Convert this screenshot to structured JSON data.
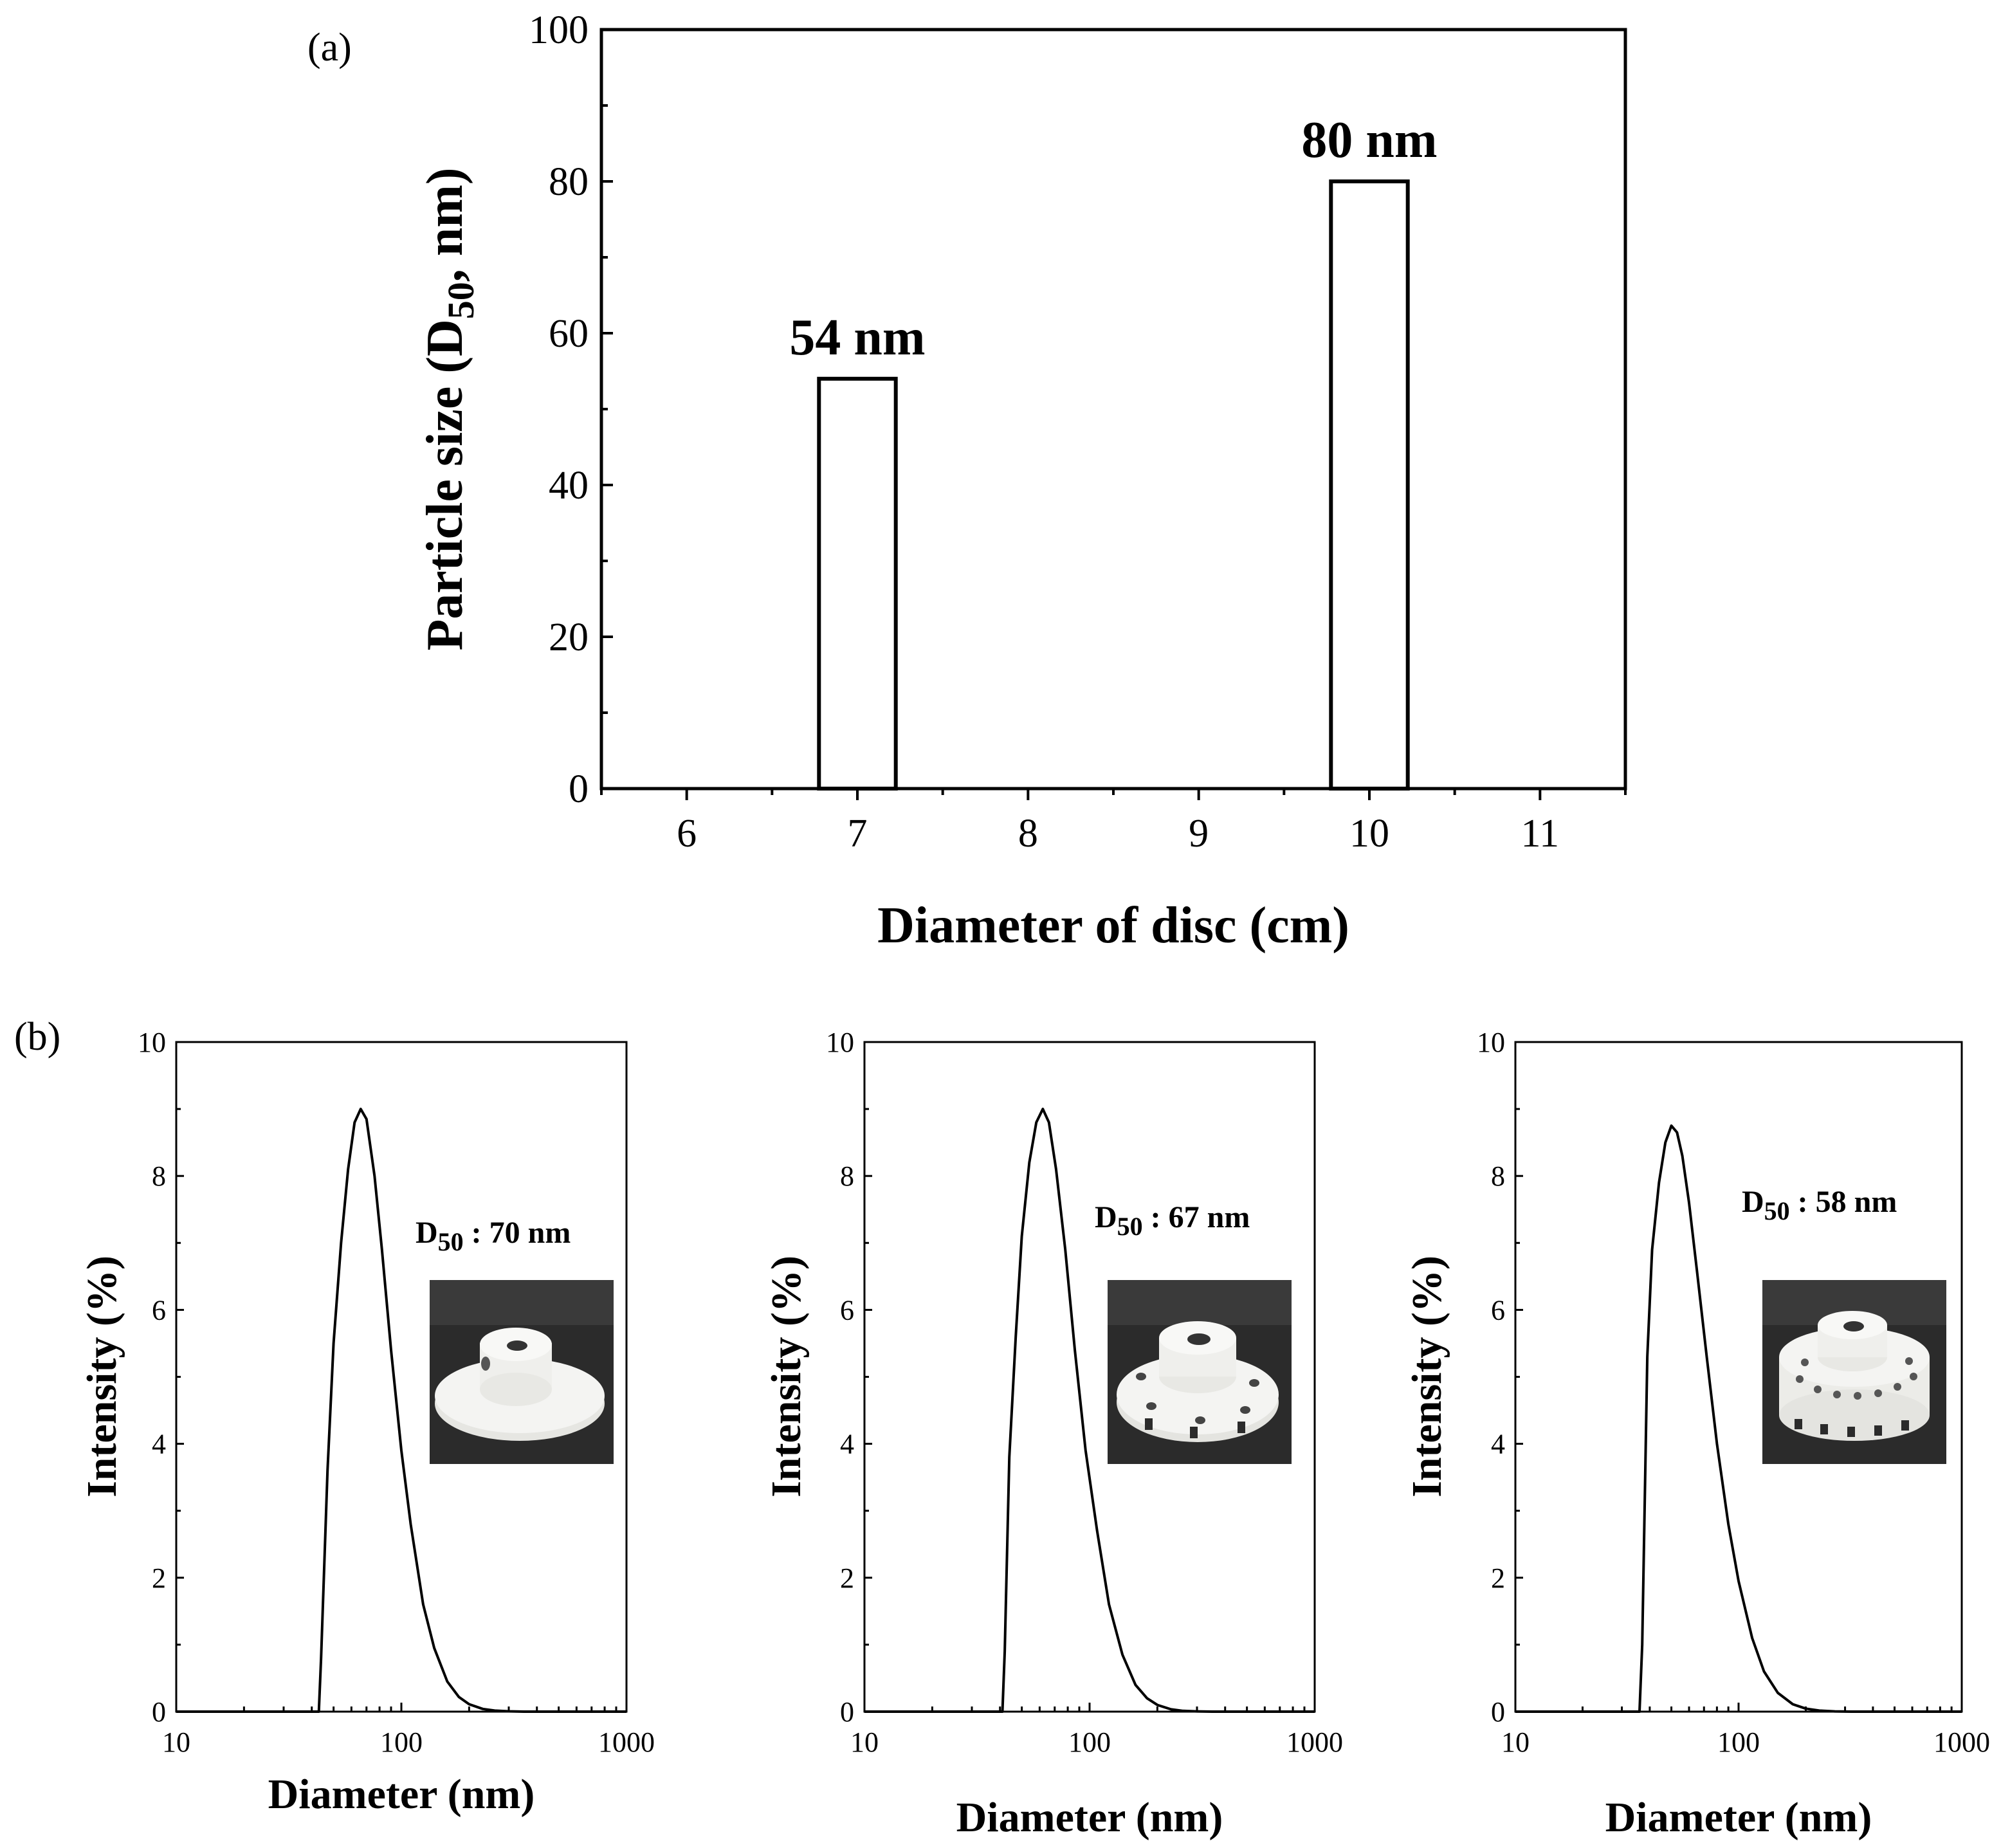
{
  "figure": {
    "panel_a_label": "(a)",
    "panel_b_label": "(b)"
  },
  "colors": {
    "line": "#000000",
    "bar_fill": "#ffffff",
    "background": "#ffffff",
    "photo_bg": "#2a2a2a",
    "part_white": "#f2f2f0"
  },
  "chart_data": [
    {
      "id": "a",
      "type": "bar",
      "title": "",
      "xlabel": "Diameter of disc (cm)",
      "ylabel_main": "Particle size (D",
      "ylabel_sub": "50",
      "ylabel_tail": ", nm)",
      "x": [
        7,
        10
      ],
      "values": [
        54,
        80
      ],
      "data_labels": [
        "54 nm",
        "80 nm"
      ],
      "xlim": [
        5.5,
        11.5
      ],
      "ylim": [
        0,
        100
      ],
      "xticks": [
        6,
        7,
        8,
        9,
        10,
        11
      ],
      "yticks": [
        0,
        20,
        40,
        60,
        80,
        100
      ],
      "bar_width": 0.45,
      "grid": false
    },
    {
      "id": "b1",
      "type": "line",
      "xscale": "log",
      "xlabel": "Diameter (nm)",
      "ylabel": "Intensity (%)",
      "xlim": [
        10,
        1000
      ],
      "ylim": [
        0,
        10
      ],
      "xticks": [
        10,
        100,
        1000
      ],
      "yticks": [
        0,
        2,
        4,
        6,
        8,
        10
      ],
      "annotation_main": "D",
      "annotation_sub": "50",
      "annotation_tail": " : 70 nm",
      "inset_photo": "disc-no-holes",
      "x": [
        43,
        44,
        47,
        50,
        54,
        58,
        62,
        66,
        70,
        76,
        82,
        90,
        100,
        110,
        125,
        140,
        160,
        180,
        200,
        230,
        260,
        300,
        350,
        450,
        600,
        1000
      ],
      "y": [
        0,
        0.8,
        3.6,
        5.5,
        7.0,
        8.1,
        8.8,
        9.0,
        8.85,
        8.0,
        6.9,
        5.4,
        3.9,
        2.8,
        1.6,
        0.95,
        0.45,
        0.22,
        0.11,
        0.04,
        0.015,
        0.005,
        0,
        0,
        0,
        0
      ]
    },
    {
      "id": "b2",
      "type": "line",
      "xscale": "log",
      "xlabel": "Diameter (nm)",
      "ylabel": "Intensity (%)",
      "xlim": [
        10,
        1000
      ],
      "ylim": [
        0,
        10
      ],
      "xticks": [
        10,
        100,
        1000
      ],
      "yticks": [
        0,
        2,
        4,
        6,
        8,
        10
      ],
      "annotation_main": "D",
      "annotation_sub": "50",
      "annotation_tail": " : 67 nm",
      "inset_photo": "disc-6-holes",
      "x": [
        41,
        42,
        44,
        47,
        50,
        54,
        58,
        62,
        66,
        71,
        78,
        86,
        96,
        108,
        122,
        140,
        160,
        180,
        200,
        230,
        260,
        300,
        350,
        450,
        600,
        1000
      ],
      "y": [
        0,
        0.9,
        3.8,
        5.6,
        7.1,
        8.2,
        8.8,
        9.0,
        8.8,
        8.1,
        6.9,
        5.4,
        3.9,
        2.7,
        1.6,
        0.85,
        0.4,
        0.2,
        0.1,
        0.035,
        0.012,
        0.004,
        0,
        0,
        0,
        0
      ]
    },
    {
      "id": "b3",
      "type": "line",
      "xscale": "log",
      "xlabel": "Diameter (nm)",
      "ylabel": "Intensity (%)",
      "xlim": [
        10,
        1000
      ],
      "ylim": [
        0,
        10
      ],
      "xticks": [
        10,
        100,
        1000
      ],
      "yticks": [
        0,
        2,
        4,
        6,
        8,
        10
      ],
      "annotation_main": "D",
      "annotation_sub": "50",
      "annotation_tail": " : 58 nm",
      "inset_photo": "disc-many-holes",
      "x": [
        36,
        37,
        39,
        41,
        44,
        47,
        50,
        53,
        56,
        60,
        65,
        72,
        80,
        90,
        100,
        115,
        130,
        150,
        175,
        200,
        230,
        270,
        320,
        400,
        600,
        1000
      ],
      "y": [
        0,
        1.0,
        5.3,
        6.9,
        7.9,
        8.5,
        8.75,
        8.65,
        8.3,
        7.6,
        6.6,
        5.3,
        4.0,
        2.8,
        1.95,
        1.1,
        0.6,
        0.28,
        0.11,
        0.045,
        0.015,
        0.004,
        0,
        0,
        0,
        0
      ]
    }
  ]
}
